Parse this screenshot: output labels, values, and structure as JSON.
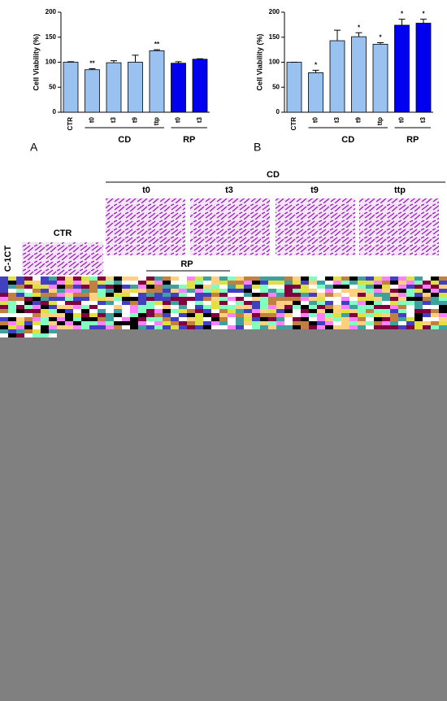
{
  "chart_data": [
    {
      "type": "bar",
      "panel": "A",
      "y_label": "Cell Viability (%)",
      "categories": [
        "CTR",
        "t0",
        "t3",
        "t9",
        "ttp",
        "t0",
        "t3"
      ],
      "group": [
        null,
        "CD",
        "CD",
        "CD",
        "CD",
        "RP",
        "RP"
      ],
      "values": [
        100,
        85,
        99,
        100,
        123,
        98,
        106
      ],
      "errors": [
        1,
        2,
        4,
        14,
        2,
        3,
        1
      ],
      "annotations": [
        null,
        "**",
        null,
        null,
        "**",
        null,
        null
      ],
      "colors": [
        "#99c2f0",
        "#99c2f0",
        "#99c2f0",
        "#99c2f0",
        "#99c2f0",
        "#0000ee",
        "#0000ee"
      ],
      "ylim": [
        0,
        200
      ],
      "yticks": [
        0,
        50,
        100,
        150,
        200
      ]
    },
    {
      "type": "bar",
      "panel": "B",
      "y_label": "Cell Viability (%)",
      "categories": [
        "CTR",
        "t0",
        "t3",
        "t9",
        "ttp",
        "t0",
        "t3"
      ],
      "group": [
        null,
        "CD",
        "CD",
        "CD",
        "CD",
        "RP",
        "RP"
      ],
      "values": [
        100,
        79,
        143,
        151,
        136,
        174,
        178
      ],
      "errors": [
        0,
        5,
        21,
        8,
        3,
        12,
        8
      ],
      "annotations": [
        null,
        "*",
        null,
        "*",
        "*",
        "*",
        "*"
      ],
      "colors": [
        "#99c2f0",
        "#99c2f0",
        "#99c2f0",
        "#99c2f0",
        "#99c2f0",
        "#0000ee",
        "#0000ee"
      ],
      "ylim": [
        0,
        200
      ],
      "yticks": [
        0,
        50,
        100,
        150,
        200
      ]
    }
  ],
  "micrographs": {
    "group_label": "CD",
    "columns": [
      "t0",
      "t3",
      "t9",
      "ttp"
    ],
    "ctr_label": "CTR",
    "rp_label": "RP",
    "row_label": "C-1CT"
  }
}
